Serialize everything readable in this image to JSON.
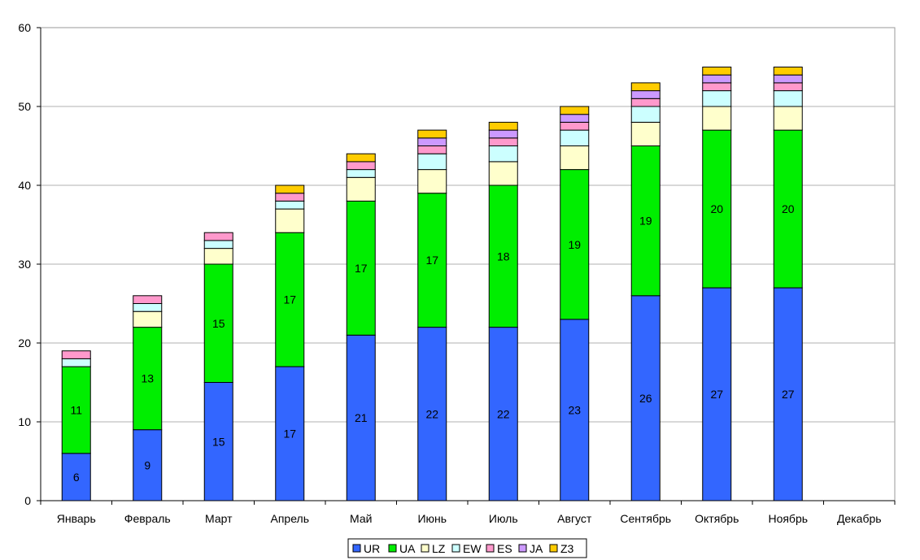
{
  "chart_data": {
    "type": "bar",
    "stacked": true,
    "categories": [
      "Январь",
      "Февраль",
      "Март",
      "Апрель",
      "Май",
      "Июнь",
      "Июль",
      "Август",
      "Сентябрь",
      "Октябрь",
      "Ноябрь",
      "Декабрь"
    ],
    "series": [
      {
        "name": "UR",
        "color": "#3366ff",
        "values": [
          6,
          9,
          15,
          17,
          21,
          22,
          22,
          23,
          26,
          27,
          27,
          0
        ],
        "labeled": true
      },
      {
        "name": "UA",
        "color": "#00ee00",
        "values": [
          11,
          13,
          15,
          17,
          17,
          17,
          18,
          19,
          19,
          20,
          20,
          0
        ],
        "labeled": true
      },
      {
        "name": "LZ",
        "color": "#ffffcc",
        "values": [
          0,
          2,
          2,
          3,
          3,
          3,
          3,
          3,
          3,
          3,
          3,
          0
        ],
        "labeled": false
      },
      {
        "name": "EW",
        "color": "#ccffff",
        "values": [
          1,
          1,
          1,
          1,
          1,
          2,
          2,
          2,
          2,
          2,
          2,
          0
        ],
        "labeled": false
      },
      {
        "name": "ES",
        "color": "#ff99cc",
        "values": [
          1,
          1,
          1,
          1,
          1,
          1,
          1,
          1,
          1,
          1,
          1,
          0
        ],
        "labeled": false
      },
      {
        "name": "JA",
        "color": "#cc99ff",
        "values": [
          0,
          0,
          0,
          0,
          0,
          1,
          1,
          1,
          1,
          1,
          1,
          0
        ],
        "labeled": false
      },
      {
        "name": "Z3",
        "color": "#ffcc00",
        "values": [
          0,
          0,
          0,
          1,
          1,
          1,
          1,
          1,
          1,
          1,
          1,
          0
        ],
        "labeled": false
      }
    ],
    "ylim": [
      0,
      60
    ],
    "yticks": [
      0,
      10,
      20,
      30,
      40,
      50,
      60
    ],
    "grid": true,
    "legend": "bottom",
    "title": "",
    "xlabel": "",
    "ylabel": ""
  }
}
